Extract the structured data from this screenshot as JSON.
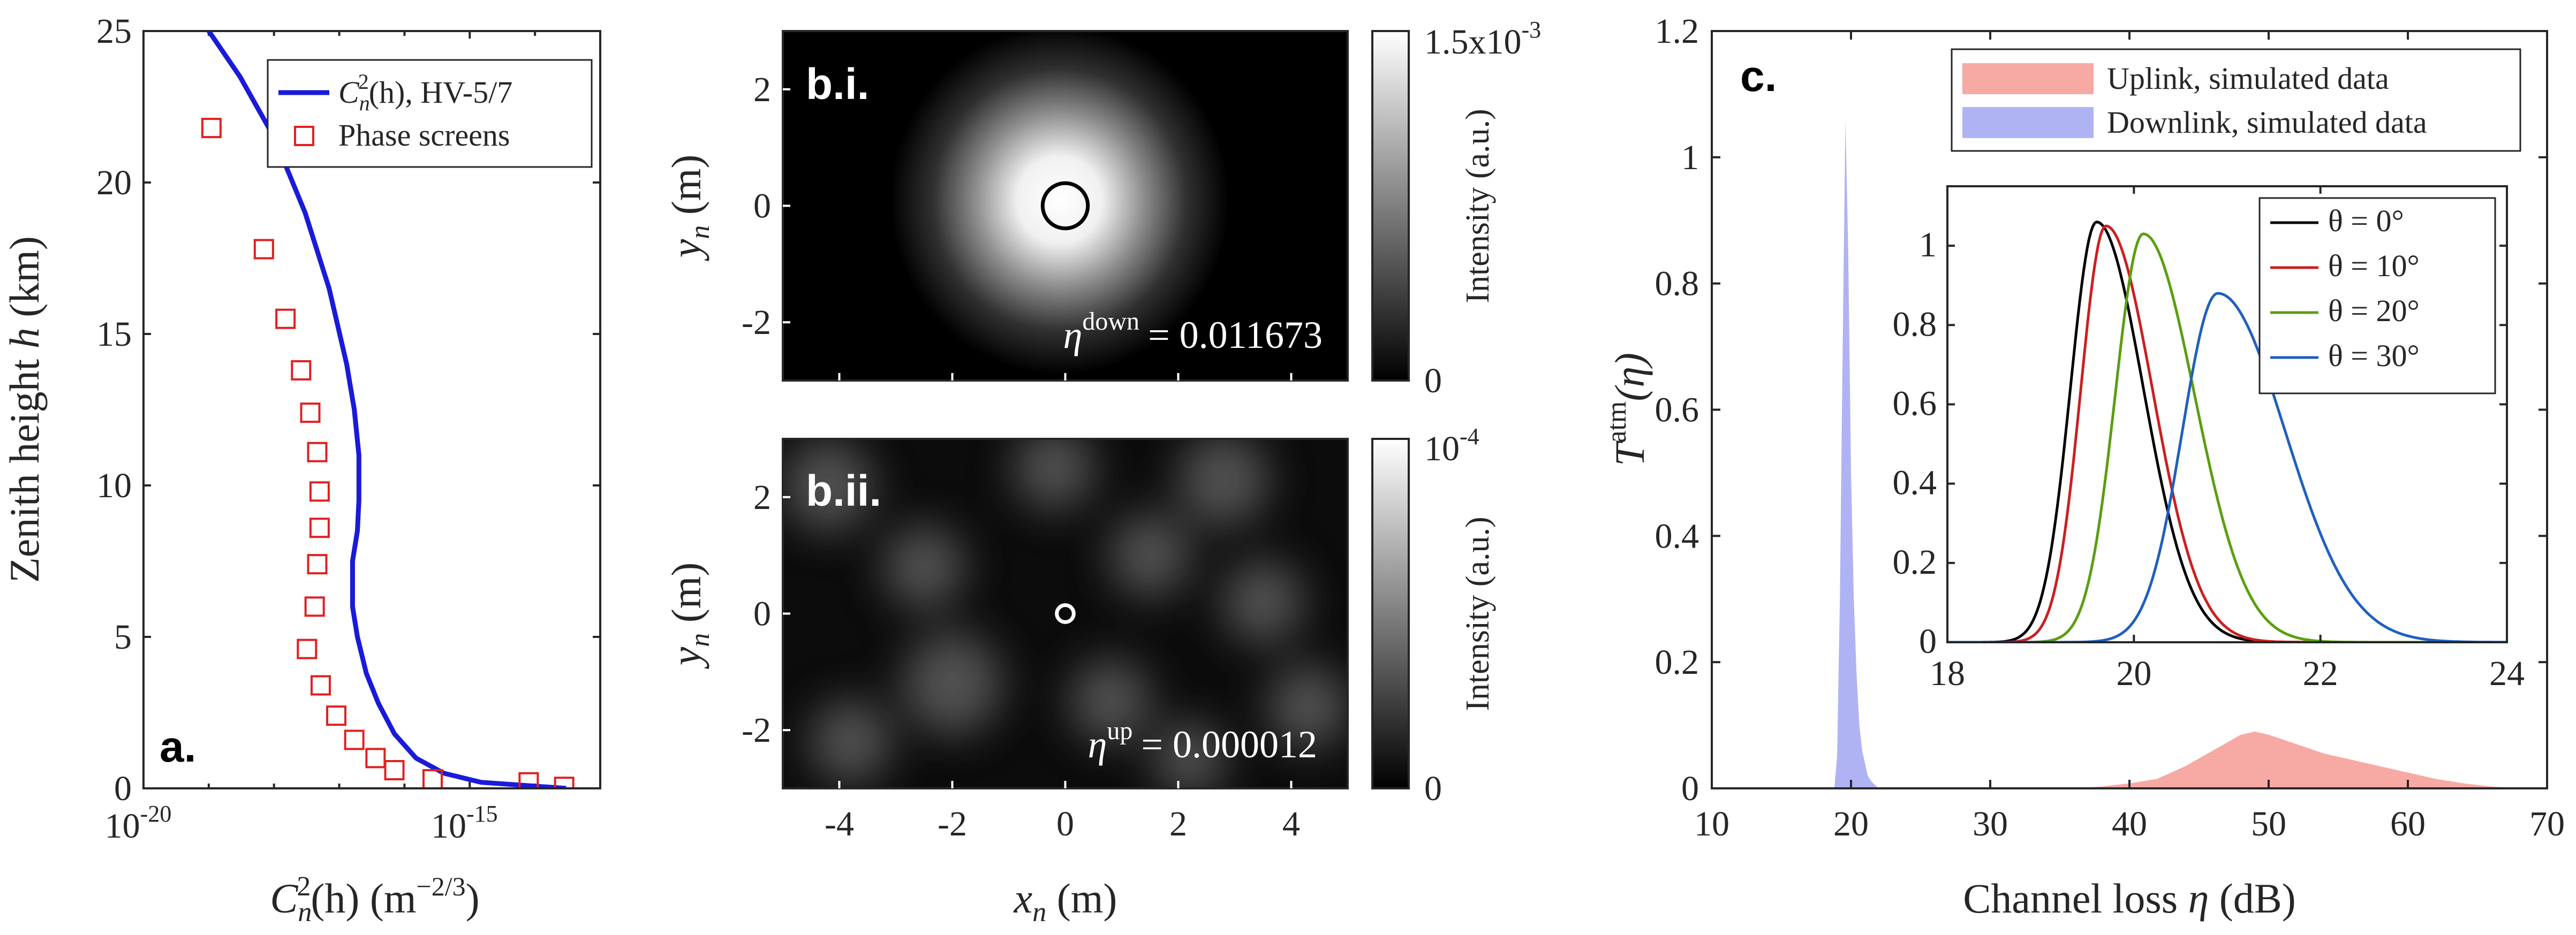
{
  "colors": {
    "cn2_curve": "#1a1adb",
    "phase_marker": "#e0201f",
    "uplink": "#f7a9a4",
    "downlink": "#b0b3f3",
    "theta0": "#000000",
    "theta10": "#cc1f1f",
    "theta20": "#5a9e10",
    "theta30": "#1f5fbf"
  },
  "chart_data": [
    {
      "id": "panel-a",
      "type": "line",
      "panel_label": "a.",
      "xscale": "log",
      "xlim": [
        1e-20,
        1e-13
      ],
      "ylim": [
        0,
        25
      ],
      "xticks": [
        1e-20,
        1e-15
      ],
      "xtick_labels": [
        "10",
        "10"
      ],
      "xtick_exponents": [
        "-20",
        "-15"
      ],
      "yticks": [
        0,
        5,
        10,
        15,
        20,
        25
      ],
      "ytick_labels": [
        "0",
        "5",
        "10",
        "15",
        "20",
        "25"
      ],
      "xlabel": {
        "text": "C",
        "sub": "n",
        "sup": "2",
        "rest": "(h)  (m",
        "unit_sup": "−2/3",
        "close": ")"
      },
      "ylabel": {
        "text": "Zenith height ",
        "italic": "h",
        "rest": " (km)"
      },
      "legend": {
        "placement": "top-right"
      },
      "series": [
        {
          "name": "HV-5/7",
          "legend_math": {
            "text": "C",
            "sub": "n",
            "sup": "2",
            "rest": "(h), HV-5/7"
          },
          "style": "line",
          "x": [
            1e-19,
            3e-19,
            1e-18,
            3e-18,
            7e-18,
            1.3e-17,
            1.7e-17,
            2e-17,
            2e-17,
            1.9e-17,
            1.6e-17,
            1.6e-17,
            1.9e-17,
            2.6e-17,
            4e-17,
            7e-17,
            1.5e-16,
            4e-16,
            1.5e-15,
            3e-14
          ],
          "y": [
            25,
            23.5,
            21.5,
            19.0,
            16.5,
            14.0,
            12.5,
            11.0,
            9.5,
            8.5,
            7.5,
            6.0,
            5.0,
            3.8,
            2.8,
            1.8,
            1.0,
            0.5,
            0.2,
            0.0
          ]
        },
        {
          "name": "Phase screens",
          "style": "marker",
          "x": [
            1.1e-19,
            7e-19,
            1.5e-18,
            2.6e-18,
            3.6e-18,
            4.6e-18,
            5e-18,
            5e-18,
            4.6e-18,
            4.2e-18,
            3.2e-18,
            5.2e-18,
            9e-18,
            1.7e-17,
            3.6e-17,
            7e-17,
            2.7e-16,
            8e-15,
            2.8e-14
          ],
          "y": [
            21.8,
            17.8,
            15.5,
            13.8,
            12.4,
            11.1,
            9.8,
            8.6,
            7.4,
            6.0,
            4.6,
            3.4,
            2.4,
            1.6,
            1.0,
            0.6,
            0.3,
            0.2,
            0.05
          ]
        }
      ]
    },
    {
      "id": "panel-bi",
      "type": "heatmap",
      "panel_label": "b.i.",
      "xlim": [
        -5,
        5
      ],
      "ylim": [
        -3,
        3
      ],
      "yticks": [
        -2,
        0,
        2
      ],
      "ytick_labels": [
        "-2",
        "0",
        "2"
      ],
      "ylabel": {
        "text": "y",
        "sub": "n",
        "rest": " (m)"
      },
      "colorbar": {
        "max_label": "1.5x10",
        "max_sup": "-3",
        "min_label": "0",
        "label": "Intensity (a.u.)"
      },
      "beam": {
        "center": [
          -0.1,
          0.1
        ],
        "sigma_m": 1.5
      },
      "aperture": {
        "center": [
          0,
          0
        ],
        "radius_m": 0.4
      },
      "annotation": {
        "symbol": "η",
        "sup": "down",
        "value": "= 0.011673"
      }
    },
    {
      "id": "panel-bii",
      "type": "heatmap",
      "panel_label": "b.ii.",
      "xlim": [
        -5,
        5
      ],
      "ylim": [
        -3,
        3
      ],
      "xticks": [
        -4,
        -2,
        0,
        2,
        4
      ],
      "xtick_labels": [
        "-4",
        "-2",
        "0",
        "2",
        "4"
      ],
      "yticks": [
        -2,
        0,
        2
      ],
      "ytick_labels": [
        "-2",
        "0",
        "2"
      ],
      "xlabel": {
        "text": "x",
        "sub": "n",
        "rest": " (m)"
      },
      "ylabel": {
        "text": "y",
        "sub": "n",
        "rest": " (m)"
      },
      "colorbar": {
        "max_label": "10",
        "max_sup": "-4",
        "min_label": "0",
        "label": "Intensity (a.u.)"
      },
      "speckles": [
        [
          -4.2,
          2.2,
          0.5
        ],
        [
          -2.5,
          0.8,
          0.45
        ],
        [
          -2.0,
          -1.2,
          0.55
        ],
        [
          -0.2,
          2.5,
          0.45
        ],
        [
          1.5,
          1.0,
          0.45
        ],
        [
          2.8,
          2.3,
          0.5
        ],
        [
          3.5,
          0.2,
          0.45
        ],
        [
          4.3,
          -1.6,
          0.45
        ],
        [
          0.8,
          -1.5,
          0.45
        ],
        [
          -3.8,
          -2.2,
          0.45
        ],
        [
          2.2,
          -2.5,
          0.4
        ]
      ],
      "aperture": {
        "center": [
          0,
          0
        ],
        "radius_m": 0.15
      },
      "annotation": {
        "symbol": "η",
        "sup": "up",
        "value": "= 0.000012"
      }
    },
    {
      "id": "panel-c",
      "type": "area",
      "panel_label": "c.",
      "xlim": [
        10,
        70
      ],
      "ylim": [
        0,
        1.2
      ],
      "xticks": [
        10,
        20,
        30,
        40,
        50,
        60,
        70
      ],
      "xtick_labels": [
        "10",
        "20",
        "30",
        "40",
        "50",
        "60",
        "70"
      ],
      "yticks": [
        0,
        0.2,
        0.4,
        0.6,
        0.8,
        1,
        1.2
      ],
      "ytick_labels": [
        "0",
        "0.2",
        "0.4",
        "0.6",
        "0.8",
        "1",
        "1.2"
      ],
      "xlabel": {
        "text": "Channel loss ",
        "italic": "η",
        "rest": " (dB)"
      },
      "ylabel": {
        "text": "T",
        "sup": "atm",
        "rest": "(η)"
      },
      "legend": {
        "placement": "top-right"
      },
      "series": [
        {
          "name": "Uplink, simulated data",
          "x": [
            36,
            38,
            40,
            42,
            44,
            46,
            48,
            49,
            50,
            52,
            54,
            56,
            58,
            60,
            62,
            64,
            66,
            68
          ],
          "values": [
            0.0,
            0.003,
            0.008,
            0.015,
            0.035,
            0.06,
            0.085,
            0.09,
            0.085,
            0.07,
            0.055,
            0.045,
            0.035,
            0.025,
            0.015,
            0.008,
            0.003,
            0.0
          ]
        },
        {
          "name": "Downlink, simulated data",
          "x": [
            18.8,
            19.0,
            19.2,
            19.4,
            19.6,
            19.8,
            20.0,
            20.2,
            20.4,
            20.6,
            20.8,
            21.0,
            21.2,
            21.5,
            22.0
          ],
          "values": [
            0.0,
            0.05,
            0.3,
            0.7,
            1.06,
            0.85,
            0.5,
            0.3,
            0.18,
            0.1,
            0.06,
            0.04,
            0.02,
            0.01,
            0.0
          ]
        }
      ],
      "inset": {
        "type": "line",
        "xlim": [
          18,
          24
        ],
        "ylim": [
          0,
          1.15
        ],
        "xticks": [
          18,
          20,
          22,
          24
        ],
        "xtick_labels": [
          "18",
          "20",
          "22",
          "24"
        ],
        "yticks": [
          0,
          0.2,
          0.4,
          0.6,
          0.8,
          1
        ],
        "ytick_labels": [
          "0",
          "0.2",
          "0.4",
          "0.6",
          "0.8",
          "1"
        ],
        "legend": {
          "placement": "top-right"
        },
        "series": [
          {
            "name": "θ = 0°",
            "color_key": "theta0",
            "peak_x": 19.6,
            "peak_y": 1.06,
            "sigma_left": 0.28,
            "sigma_right": 0.5
          },
          {
            "name": "θ = 10°",
            "color_key": "theta10",
            "peak_x": 19.7,
            "peak_y": 1.05,
            "sigma_left": 0.27,
            "sigma_right": 0.5
          },
          {
            "name": "θ = 20°",
            "color_key": "theta20",
            "peak_x": 20.1,
            "peak_y": 1.03,
            "sigma_left": 0.3,
            "sigma_right": 0.55
          },
          {
            "name": "θ = 30°",
            "color_key": "theta30",
            "peak_x": 20.9,
            "peak_y": 0.88,
            "sigma_left": 0.38,
            "sigma_right": 0.72
          }
        ]
      }
    }
  ]
}
